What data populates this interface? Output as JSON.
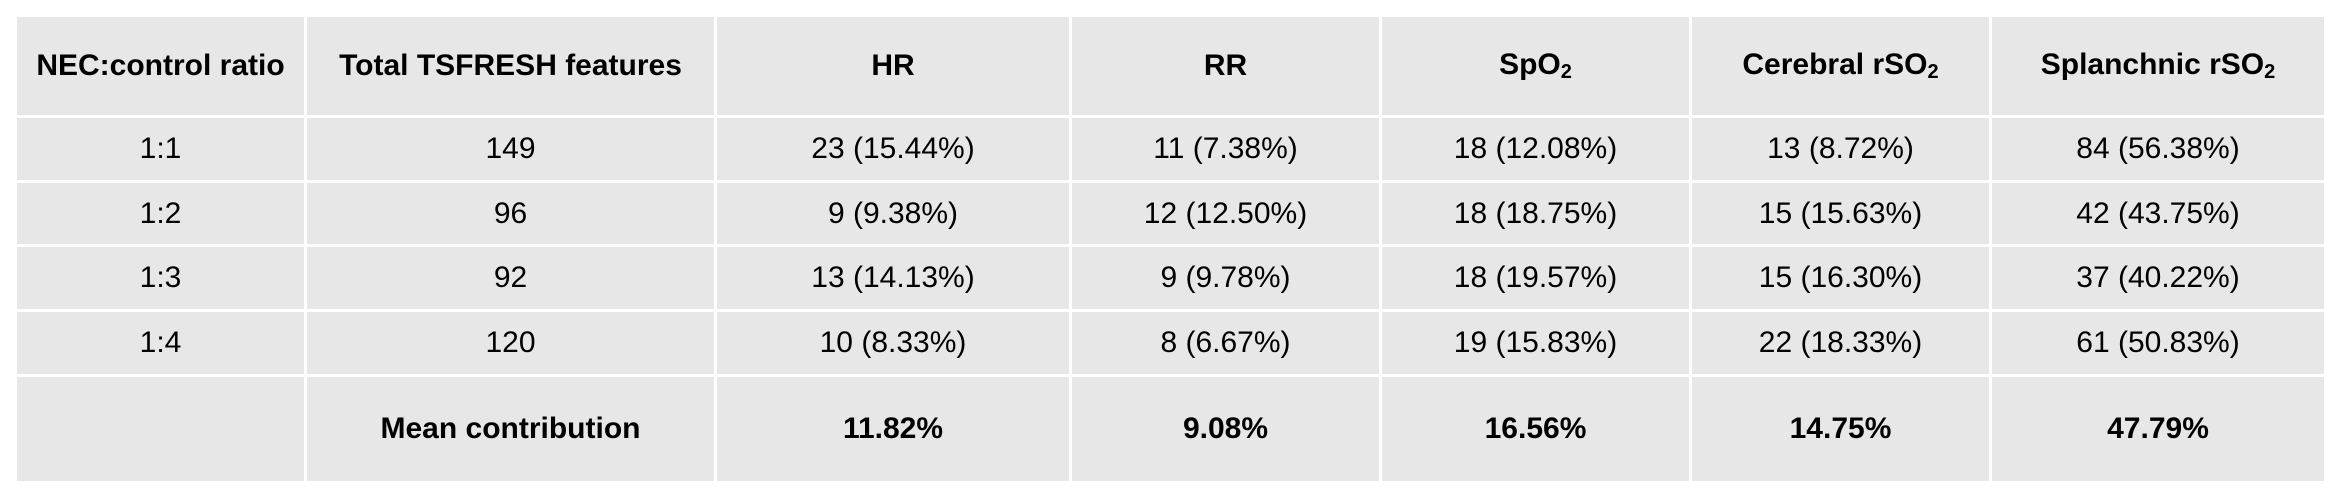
{
  "table": {
    "headers": [
      {
        "text": "NEC:control ratio",
        "sub": ""
      },
      {
        "text": "Total TSFRESH features",
        "sub": ""
      },
      {
        "text": "HR",
        "sub": ""
      },
      {
        "text": "RR",
        "sub": ""
      },
      {
        "text": "SpO",
        "sub": "2"
      },
      {
        "text": "Cerebral rSO",
        "sub": "2"
      },
      {
        "text": "Splanchnic rSO",
        "sub": "2"
      }
    ],
    "rows": [
      [
        "1:1",
        "149",
        "23 (15.44%)",
        "11 (7.38%)",
        "18 (12.08%)",
        "13 (8.72%)",
        "84 (56.38%)"
      ],
      [
        "1:2",
        "96",
        "9 (9.38%)",
        "12 (12.50%)",
        "18 (18.75%)",
        "15 (15.63%)",
        "42 (43.75%)"
      ],
      [
        "1:3",
        "92",
        "13 (14.13%)",
        "9 (9.78%)",
        "18 (19.57%)",
        "15 (16.30%)",
        "37 (40.22%)"
      ],
      [
        "1:4",
        "120",
        "10 (8.33%)",
        "8 (6.67%)",
        "19 (15.83%)",
        "22 (18.33%)",
        "61 (50.83%)"
      ]
    ],
    "summary": [
      "",
      "Mean contribution",
      "11.82%",
      "9.08%",
      "16.56%",
      "14.75%",
      "47.79%"
    ]
  }
}
